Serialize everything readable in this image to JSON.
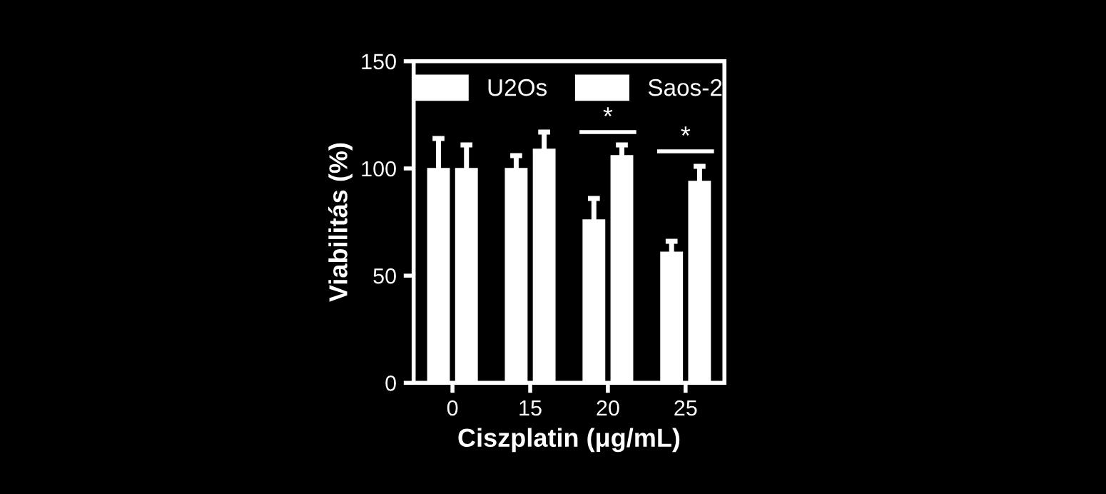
{
  "chart_data": {
    "type": "bar",
    "xlabel": "Ciszplatin (μg/mL)",
    "ylabel": "Viabilitás (%)",
    "categories": [
      "0",
      "15",
      "20",
      "25"
    ],
    "series": [
      {
        "name": "U2Os",
        "color": "#ffffff",
        "values": [
          100,
          100,
          76,
          61
        ],
        "errors": [
          14,
          6,
          10,
          5
        ]
      },
      {
        "name": "Saos-2",
        "color": "#ffffff",
        "values": [
          100,
          109,
          106,
          94
        ],
        "errors": [
          11,
          8,
          5,
          7
        ]
      }
    ],
    "ylim": [
      0,
      150
    ],
    "yticks": [
      0,
      50,
      100,
      150
    ],
    "grid": false,
    "legend": "top",
    "annotations": [
      "*",
      "*"
    ]
  }
}
